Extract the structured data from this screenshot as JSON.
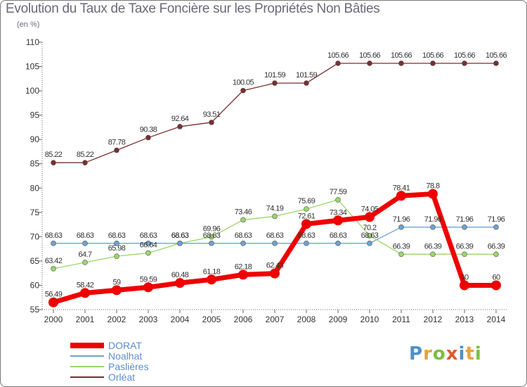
{
  "chart_data": {
    "type": "line",
    "title": "Evolution du Taux de Taxe Foncière sur les Propriétés Non Bâties",
    "ylabel": "(en %)",
    "xlabel": "",
    "categories": [
      "2000",
      "2001",
      "2002",
      "2003",
      "2004",
      "2005",
      "2006",
      "2007",
      "2008",
      "2009",
      "2010",
      "2011",
      "2012",
      "2013",
      "2014"
    ],
    "ylim": [
      55,
      110
    ],
    "yticks": [
      55,
      60,
      65,
      70,
      75,
      80,
      85,
      90,
      95,
      100,
      105,
      110
    ],
    "grid": false,
    "legend_position": "bottom-left",
    "series": [
      {
        "name": "DORAT",
        "color": "#ee0000",
        "thick": true,
        "values": [
          56.49,
          58.42,
          59,
          59.59,
          60.48,
          61.18,
          62.18,
          62.43,
          72.61,
          73.34,
          74.05,
          78.41,
          78.8,
          60,
          60
        ],
        "labels": [
          "56.49",
          "58.42",
          "59",
          "59.59",
          "60.48",
          "61.18",
          "62.18",
          "62.43",
          "72.61",
          "73.34",
          "74.05",
          "78.41",
          "78.8",
          "60",
          "60"
        ]
      },
      {
        "name": "Noalhat",
        "color": "#6ea2cf",
        "thick": false,
        "values": [
          68.63,
          68.63,
          68.63,
          68.63,
          68.63,
          68.63,
          68.63,
          68.63,
          68.63,
          68.63,
          68.63,
          71.96,
          71.96,
          71.96,
          71.96
        ],
        "labels": [
          "68.63",
          "68.63",
          "68.63",
          "68.63",
          "68.63",
          "68.63",
          "68.63",
          "68.63",
          "68.63",
          "68.63",
          "68.63",
          "71.96",
          "71.96",
          "71.96",
          "71.96"
        ]
      },
      {
        "name": "Paslières",
        "color": "#9ad66a",
        "thick": false,
        "values": [
          63.42,
          64.7,
          65.98,
          66.64,
          68.63,
          69.96,
          73.46,
          74.19,
          75.69,
          77.59,
          70.2,
          66.39,
          66.39,
          66.39,
          66.39
        ],
        "labels": [
          "63.42",
          "64.7",
          "65.98",
          "66.64",
          "68.63",
          "69.96",
          "73.46",
          "74.19",
          "75.69",
          "77.59",
          "70.2",
          "66.39",
          "66.39",
          "66.39",
          "66.39"
        ]
      },
      {
        "name": "Orléat",
        "color": "#7a2e2e",
        "thick": false,
        "values": [
          85.22,
          85.22,
          87.78,
          90.38,
          92.64,
          93.51,
          100.05,
          101.59,
          101.59,
          105.66,
          105.66,
          105.66,
          105.66,
          105.66,
          105.66
        ],
        "labels": [
          "85.22",
          "85.22",
          "87.78",
          "90.38",
          "92.64",
          "93.51",
          "100.05",
          "101.59",
          "101.59",
          "105.66",
          "105.66",
          "105.66",
          "105.66",
          "105.66",
          "105.66"
        ]
      }
    ]
  },
  "brand": {
    "text": "Proxiti",
    "colors": [
      "#4f8fc8",
      "#e8a23a",
      "#7bbf44",
      "#e05a2b",
      "#4f8fc8",
      "#e8a23a",
      "#7bbf44"
    ]
  }
}
